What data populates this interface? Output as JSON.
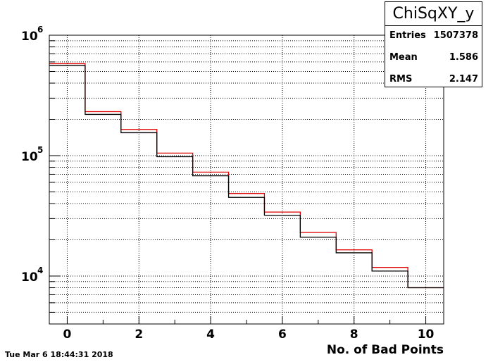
{
  "chart_data": {
    "type": "histogram",
    "title": "ChiSqXY_y",
    "xlabel": "No. of Bad Points",
    "ylabel": "",
    "xlim": [
      -0.5,
      10.5
    ],
    "ylim": [
      4000,
      1000000
    ],
    "yscale": "log",
    "grid": true,
    "xticks": [
      0,
      2,
      4,
      6,
      8,
      10
    ],
    "xtick_labels": [
      "0",
      "2",
      "4",
      "6",
      "8",
      "10"
    ],
    "yticks": [
      {
        "value": 10000,
        "mantissa": "10",
        "exponent": "4"
      },
      {
        "value": 100000,
        "mantissa": "10",
        "exponent": "5"
      },
      {
        "value": 1000000,
        "mantissa": "10",
        "exponent": "6"
      }
    ],
    "bin_edges": [
      -0.5,
      0.5,
      1.5,
      2.5,
      3.5,
      4.5,
      5.5,
      6.5,
      7.5,
      8.5,
      9.5,
      10.5
    ],
    "series": [
      {
        "color": "#000000",
        "values": [
          560000,
          220000,
          155000,
          98000,
          68000,
          45000,
          32000,
          21000,
          15600,
          11000,
          8000
        ]
      },
      {
        "color": "#e00000",
        "values": [
          580000,
          232000,
          165000,
          105000,
          73000,
          48500,
          34000,
          23000,
          16500,
          11800,
          8000
        ]
      }
    ],
    "stats": {
      "entries_label": "Entries",
      "entries": "1507378",
      "mean_label": "Mean",
      "mean": "1.586",
      "rms_label": "RMS",
      "rms": "2.147"
    }
  },
  "footer": {
    "timestamp": "Tue Mar  6 18:44:31 2018"
  }
}
